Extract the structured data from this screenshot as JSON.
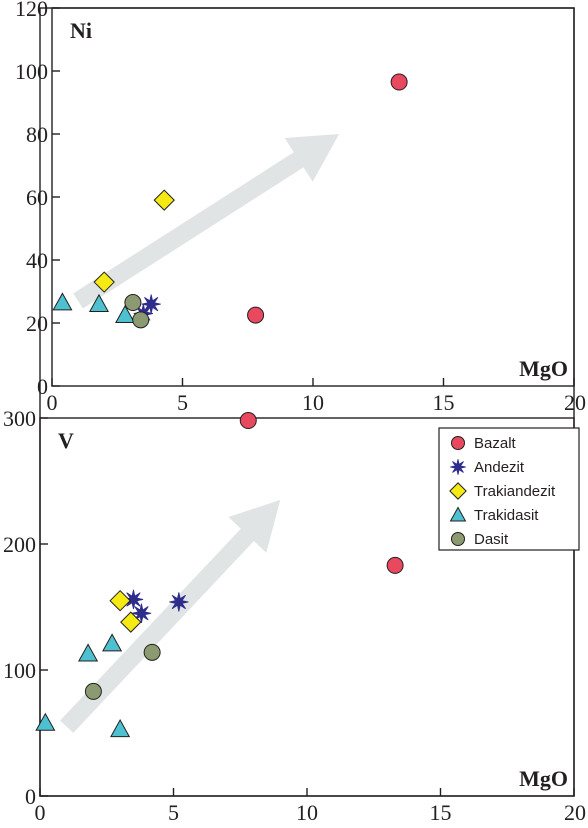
{
  "legend": [
    {
      "name": "Bazalt",
      "marker": "circle",
      "color": "#e8495f"
    },
    {
      "name": "Andezit",
      "marker": "star",
      "color": "#2e2d8c"
    },
    {
      "name": "Trakiandezit",
      "marker": "diamond",
      "color": "#f5ea14"
    },
    {
      "name": "Trakidasit",
      "marker": "triangle",
      "color": "#4ec1d0"
    },
    {
      "name": "Dasit",
      "marker": "circle",
      "color": "#8c9a72"
    }
  ],
  "chart_data": [
    {
      "type": "scatter",
      "ylabel": "Ni",
      "xlabel": "MgO",
      "xlim": [
        0,
        20
      ],
      "ylim": [
        0,
        120
      ],
      "xticks": [
        "0",
        "5",
        "10",
        "15",
        "20"
      ],
      "yticks": [
        "0",
        "20",
        "40",
        "60",
        "80",
        "100",
        "120"
      ],
      "trend_arrow": {
        "from": [
          1,
          27
        ],
        "to": [
          11,
          80
        ],
        "color": "#dcdfdf"
      },
      "series": [
        {
          "name": "Bazalt",
          "points": [
            [
              13.3,
              96.5
            ],
            [
              7.8,
              22.5
            ]
          ]
        },
        {
          "name": "Andezit",
          "points": [
            [
              3.5,
              23
            ],
            [
              3.8,
              26
            ]
          ]
        },
        {
          "name": "Trakiandezit",
          "points": [
            [
              4.3,
              59
            ],
            [
              2.0,
              33
            ]
          ]
        },
        {
          "name": "Trakidasit",
          "points": [
            [
              0.4,
              26.5
            ],
            [
              1.8,
              26
            ],
            [
              2.8,
              22.5
            ]
          ]
        },
        {
          "name": "Dasit",
          "points": [
            [
              3.1,
              26.5
            ],
            [
              3.4,
              21
            ]
          ]
        }
      ]
    },
    {
      "type": "scatter",
      "ylabel": "V",
      "xlabel": "MgO",
      "xlim": [
        0,
        20
      ],
      "ylim": [
        0,
        300
      ],
      "xticks": [
        "0",
        "5",
        "10",
        "15",
        "20"
      ],
      "yticks": [
        "0",
        "100",
        "200",
        "300"
      ],
      "trend_arrow": {
        "from": [
          1,
          55
        ],
        "to": [
          9,
          235
        ],
        "color": "#dcdfdf"
      },
      "series": [
        {
          "name": "Bazalt",
          "points": [
            [
              7.8,
              298
            ],
            [
              13.3,
              183
            ]
          ]
        },
        {
          "name": "Andezit",
          "points": [
            [
              3.5,
              156
            ],
            [
              3.8,
              145
            ],
            [
              5.2,
              154
            ]
          ]
        },
        {
          "name": "Trakiandezit",
          "points": [
            [
              3.0,
              155
            ],
            [
              3.4,
              138
            ]
          ]
        },
        {
          "name": "Trakidasit",
          "points": [
            [
              0.2,
              58
            ],
            [
              1.8,
              113
            ],
            [
              2.7,
              121
            ],
            [
              3.0,
              53
            ]
          ]
        },
        {
          "name": "Dasit",
          "points": [
            [
              4.2,
              114
            ],
            [
              2.0,
              83
            ]
          ]
        }
      ]
    }
  ]
}
